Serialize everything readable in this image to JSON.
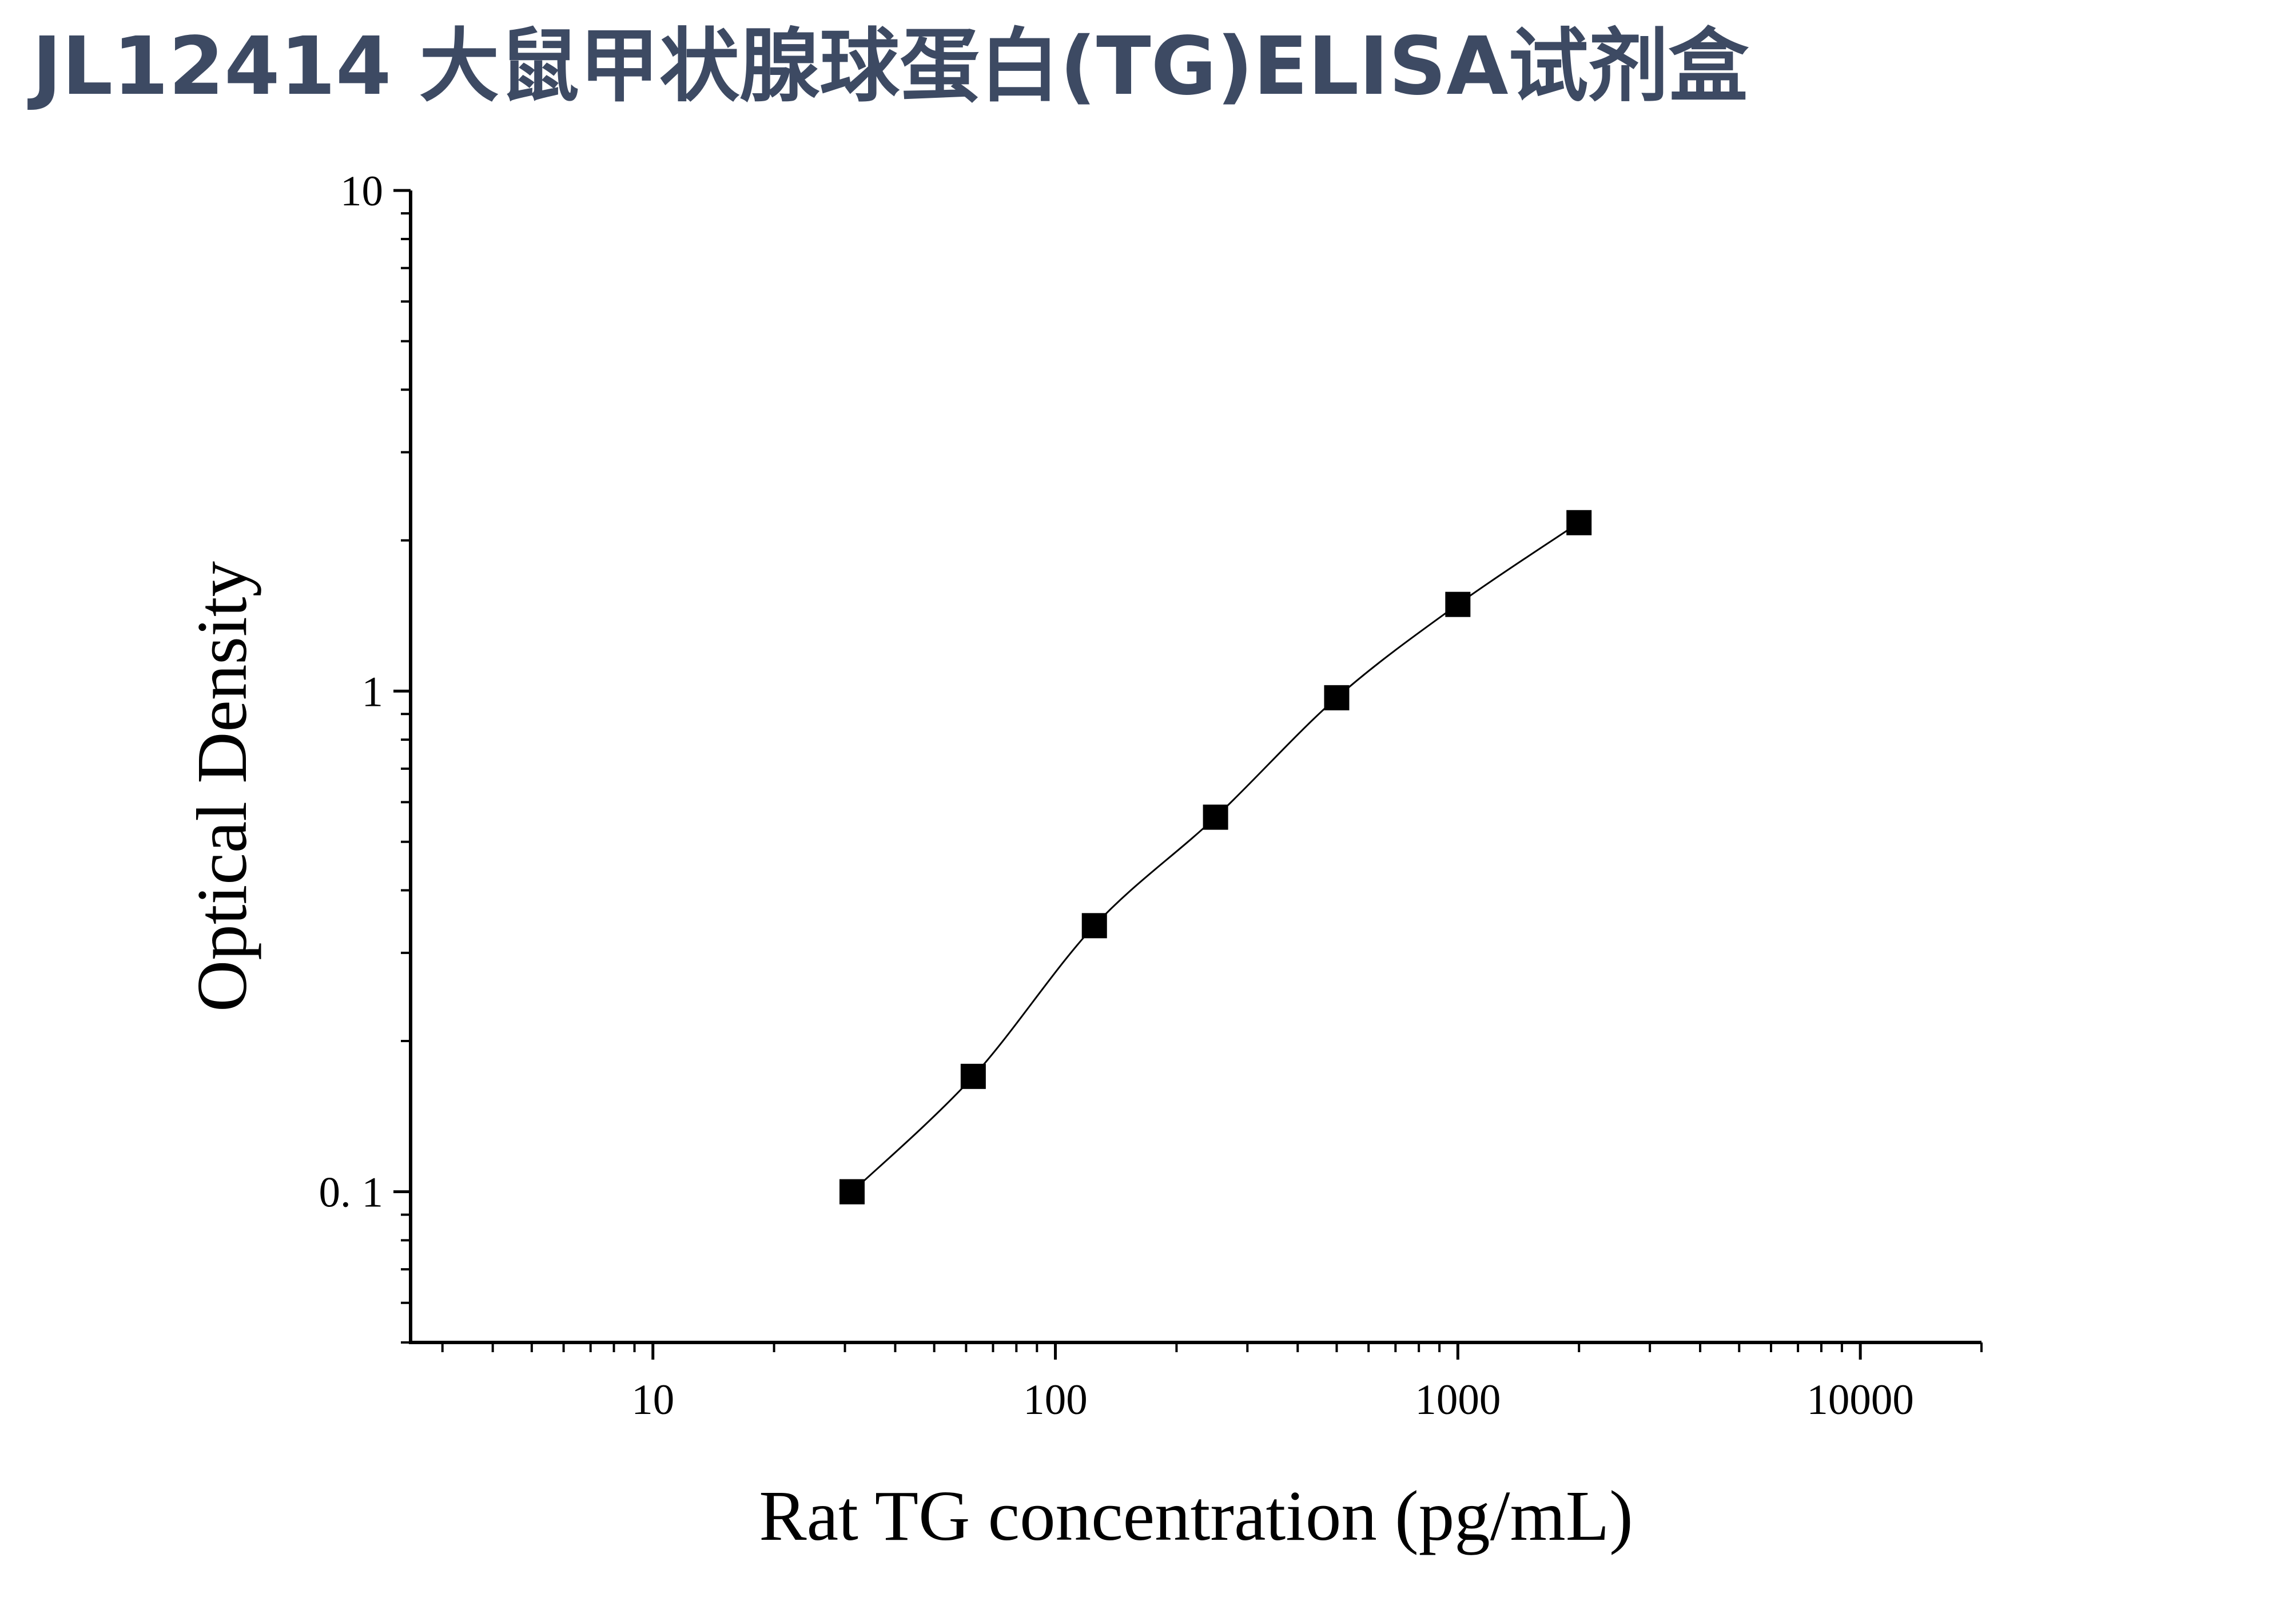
{
  "page": {
    "title": "JL12414 大鼠甲状腺球蛋白(TG)ELISA试剂盒",
    "title_color": "#3d4a63"
  },
  "chart_data": {
    "type": "scatter",
    "title": "",
    "xlabel": "Rat TG concentration (pg/mL)",
    "ylabel": "Optical Density",
    "xscale": "log",
    "yscale": "log",
    "xlim": [
      2.5,
      20000
    ],
    "ylim": [
      0.05,
      10
    ],
    "x_tick_labels": [
      "10",
      "100",
      "1000",
      "10000"
    ],
    "y_tick_labels": [
      "0. 1",
      "1",
      "10"
    ],
    "grid": false,
    "legend": "none",
    "series": [
      {
        "x": [
          31.25,
          62.5,
          125,
          250,
          500,
          1000,
          2000
        ],
        "y": [
          0.1,
          0.17,
          0.34,
          0.56,
          0.97,
          1.49,
          2.17
        ],
        "marker": "square",
        "marker_color": "#000000",
        "fit_curve": true,
        "line_color": "#000000"
      }
    ]
  }
}
